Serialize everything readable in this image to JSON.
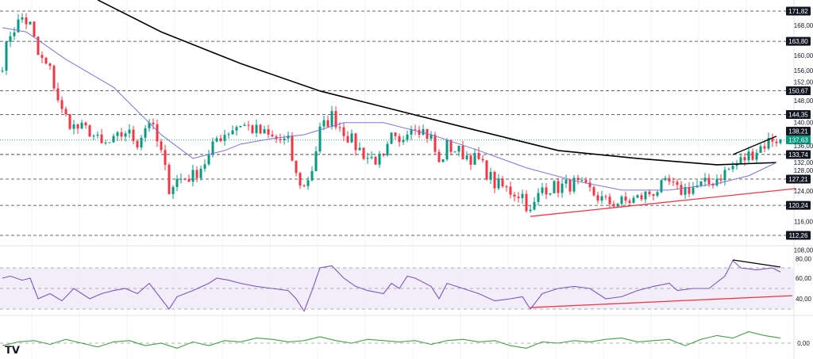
{
  "chart_data": [
    {
      "type": "candlestick",
      "panel": "price",
      "x_unit": "bar index",
      "ylim": [
        104,
        176
      ],
      "grid": true,
      "colors": {
        "up": "#089981",
        "down": "#f23645",
        "sma_long": "#000000",
        "sma_short": "#7b74e0",
        "support": "#f23645"
      },
      "y_ticks": [
        168,
        160,
        156,
        152,
        148,
        140,
        136,
        132,
        128,
        124,
        116,
        108
      ],
      "y_tick_labels": [
        "168,00",
        "160,00",
        "156,00",
        "152,00",
        "148,00",
        "140,00",
        "136,00",
        "132,00",
        "128,00",
        "124,00",
        "116,00",
        "108,00"
      ],
      "levels": [
        {
          "value": 171.82,
          "label": "171,82"
        },
        {
          "value": 163.8,
          "label": "163,80"
        },
        {
          "value": 150.67,
          "label": "150,67"
        },
        {
          "value": 144.35,
          "label": "144,35"
        },
        {
          "value": 133.74,
          "label": "133,74"
        },
        {
          "value": 127.21,
          "label": "127,21"
        },
        {
          "value": 120.24,
          "label": "120,24"
        },
        {
          "value": 112.26,
          "label": "112,26"
        }
      ],
      "last_price": {
        "value": 137.63,
        "label": "137,63",
        "color": "#089981"
      },
      "prev_marker": {
        "value": 138.21,
        "label": "138,21"
      },
      "close_path": {
        "bars": [
          0,
          2,
          5,
          7,
          9,
          12,
          15,
          18,
          22,
          25,
          28,
          31,
          34,
          37,
          40,
          42,
          44,
          48,
          52,
          54,
          57,
          60,
          64,
          68,
          72,
          74,
          76,
          78,
          80,
          83,
          86,
          89,
          92,
          96,
          98,
          100,
          102,
          104,
          108,
          110,
          112,
          116,
          120,
          124,
          128,
          131,
          133,
          136,
          140,
          144,
          148,
          152,
          156,
          160,
          164,
          168,
          170,
          174,
          178,
          182,
          186,
          190,
          194,
          196
        ],
        "close": [
          158,
          166,
          170,
          168,
          160,
          156,
          145,
          141,
          140,
          136,
          137,
          140,
          137,
          143,
          134,
          125,
          127,
          128,
          133,
          138,
          140,
          142,
          140,
          138,
          137,
          128,
          125,
          130,
          140,
          144,
          140,
          136,
          133,
          132,
          138,
          136,
          141,
          142,
          138,
          131,
          136,
          134,
          132,
          126,
          124,
          123,
          118,
          125,
          125,
          126,
          124,
          121,
          121,
          122,
          124,
          126,
          124,
          125,
          126,
          129,
          132,
          135,
          138,
          137.63
        ]
      },
      "sma_long": {
        "bars": [
          24,
          40,
          60,
          80,
          100,
          120,
          140,
          160,
          180,
          195
        ],
        "values": [
          174.8,
          166.3,
          157.9,
          150.6,
          145.3,
          140.0,
          134.8,
          132.7,
          131.0,
          131.6
        ]
      },
      "sma_short": {
        "bars": [
          0,
          6,
          16,
          28,
          40,
          48,
          56,
          60,
          68,
          76,
          86,
          96,
          108,
          120,
          132,
          144,
          156,
          168,
          180,
          188,
          195
        ],
        "values": [
          167.4,
          166.3,
          159.0,
          151.6,
          139.0,
          132.7,
          134.8,
          136.5,
          138.0,
          139.0,
          142.2,
          142.2,
          139.0,
          134.8,
          130.2,
          126.8,
          124.3,
          124.3,
          126.0,
          128.1,
          131.6
        ]
      },
      "trendlines": [
        {
          "name": "support",
          "color": "#f23645",
          "from": [
            133,
            117.3
          ],
          "to": [
            200,
            124.7
          ]
        },
        {
          "name": "upper",
          "color": "#000000",
          "from": [
            184,
            133.7
          ],
          "to": [
            195,
            138.6
          ]
        }
      ]
    },
    {
      "type": "line",
      "panel": "rsi",
      "x_unit": "bar index",
      "ylim": [
        20,
        85
      ],
      "band": [
        30,
        70
      ],
      "midline": 50,
      "color": "#7e57c2",
      "band_color": "#ede7f6",
      "y_ticks": [
        80,
        60,
        40
      ],
      "y_tick_labels": [
        "80,00",
        "60,00",
        "40,00"
      ],
      "bars": [
        0,
        2,
        5,
        7,
        9,
        12,
        15,
        18,
        22,
        25,
        28,
        31,
        34,
        37,
        40,
        42,
        44,
        48,
        52,
        54,
        57,
        60,
        64,
        68,
        72,
        74,
        76,
        78,
        80,
        83,
        86,
        89,
        92,
        96,
        98,
        100,
        102,
        104,
        108,
        110,
        112,
        116,
        120,
        124,
        128,
        131,
        133,
        136,
        140,
        144,
        148,
        152,
        156,
        160,
        164,
        168,
        170,
        174,
        178,
        182,
        184,
        186,
        190,
        194,
        196
      ],
      "values": [
        60,
        62,
        58,
        60,
        40,
        45,
        38,
        50,
        40,
        45,
        48,
        50,
        45,
        55,
        40,
        30,
        42,
        48,
        55,
        60,
        58,
        55,
        52,
        50,
        48,
        40,
        28,
        48,
        70,
        72,
        60,
        52,
        48,
        45,
        55,
        50,
        62,
        60,
        52,
        40,
        55,
        50,
        45,
        38,
        40,
        42,
        30,
        45,
        50,
        52,
        50,
        40,
        42,
        48,
        52,
        55,
        48,
        50,
        50,
        62,
        77,
        70,
        68,
        70,
        66
      ],
      "trendlines": [
        {
          "name": "support",
          "color": "#f23645",
          "from": [
            133,
            31.5
          ],
          "to": [
            199,
            43
          ]
        },
        {
          "name": "resistance",
          "color": "#000000",
          "from": [
            184,
            77.7
          ],
          "to": [
            196,
            70.8
          ]
        }
      ]
    },
    {
      "type": "line",
      "panel": "oscillator",
      "x_unit": "bar index",
      "ylim": [
        -6,
        8
      ],
      "color": "#43a047",
      "y_ticks": [
        0
      ],
      "y_tick_labels": [
        "0,00"
      ],
      "bars": [
        0,
        4,
        8,
        12,
        16,
        20,
        24,
        28,
        32,
        36,
        40,
        44,
        48,
        52,
        56,
        60,
        64,
        68,
        72,
        76,
        80,
        84,
        88,
        92,
        96,
        100,
        104,
        108,
        112,
        116,
        120,
        124,
        128,
        132,
        136,
        140,
        144,
        148,
        152,
        156,
        160,
        164,
        168,
        172,
        176,
        180,
        184,
        188,
        192,
        196
      ],
      "values": [
        -1,
        0.5,
        1,
        -0.5,
        1.5,
        0,
        -1.5,
        0.5,
        1,
        -1,
        0,
        -2,
        0.5,
        -1,
        1,
        0.5,
        2,
        1.5,
        0.5,
        1,
        2.5,
        1,
        0,
        1.5,
        1,
        0.5,
        1,
        -0.5,
        1,
        1.5,
        0.5,
        1,
        -1,
        -2,
        0.5,
        0,
        1,
        0.5,
        1.5,
        2,
        0.5,
        1,
        1.5,
        -1,
        1.5,
        3,
        2,
        4.5,
        3,
        2
      ]
    }
  ],
  "logo": "TV"
}
